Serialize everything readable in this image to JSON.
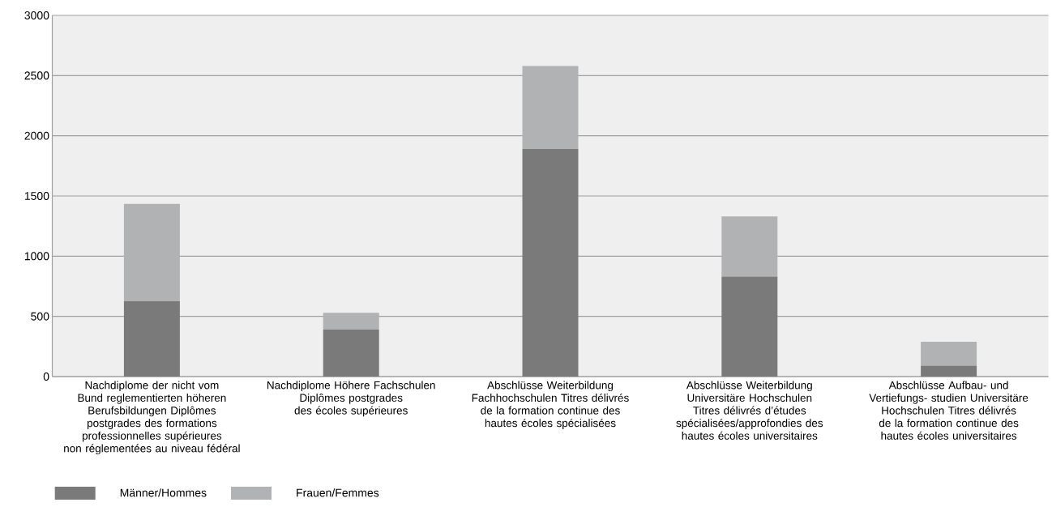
{
  "chart_data": {
    "type": "bar",
    "stacked": true,
    "categories": [
      "Nachdiplome der nicht vom Bund reglementierten höheren Berufsbildungen Diplômes postgrades des formations professionnelles supérieures non réglementées au niveau fédéral",
      "Nachdiplome Höhere Fachschulen Diplômes postgrades des écoles supérieures",
      "Abschlüsse Weiterbildung Fachhochschulen Titres délivrés de la formation continue des hautes écoles spécialisées",
      "Abschlüsse Weiterbildung Universitäre Hochschulen Titres délivrés d’études spécialisées/approfondies des hautes écoles universitaires",
      "Abschlüsse Aufbau- und Vertiefungs- studien Universitäre Hochschulen Titres délivrés de la formation continue des hautes écoles universitaires"
    ],
    "series": [
      {
        "name": "Männer/Hommes",
        "color": "#7a7a7a",
        "values": [
          625,
          390,
          1890,
          830,
          90
        ]
      },
      {
        "name": "Frauen/Femmes",
        "color": "#b1b2b3",
        "values": [
          810,
          140,
          690,
          500,
          200
        ]
      }
    ],
    "ylim": [
      0,
      3000
    ],
    "yticks": [
      0,
      500,
      1000,
      1500,
      2000,
      2500,
      3000
    ],
    "grid": "y",
    "legend": "bottom"
  }
}
